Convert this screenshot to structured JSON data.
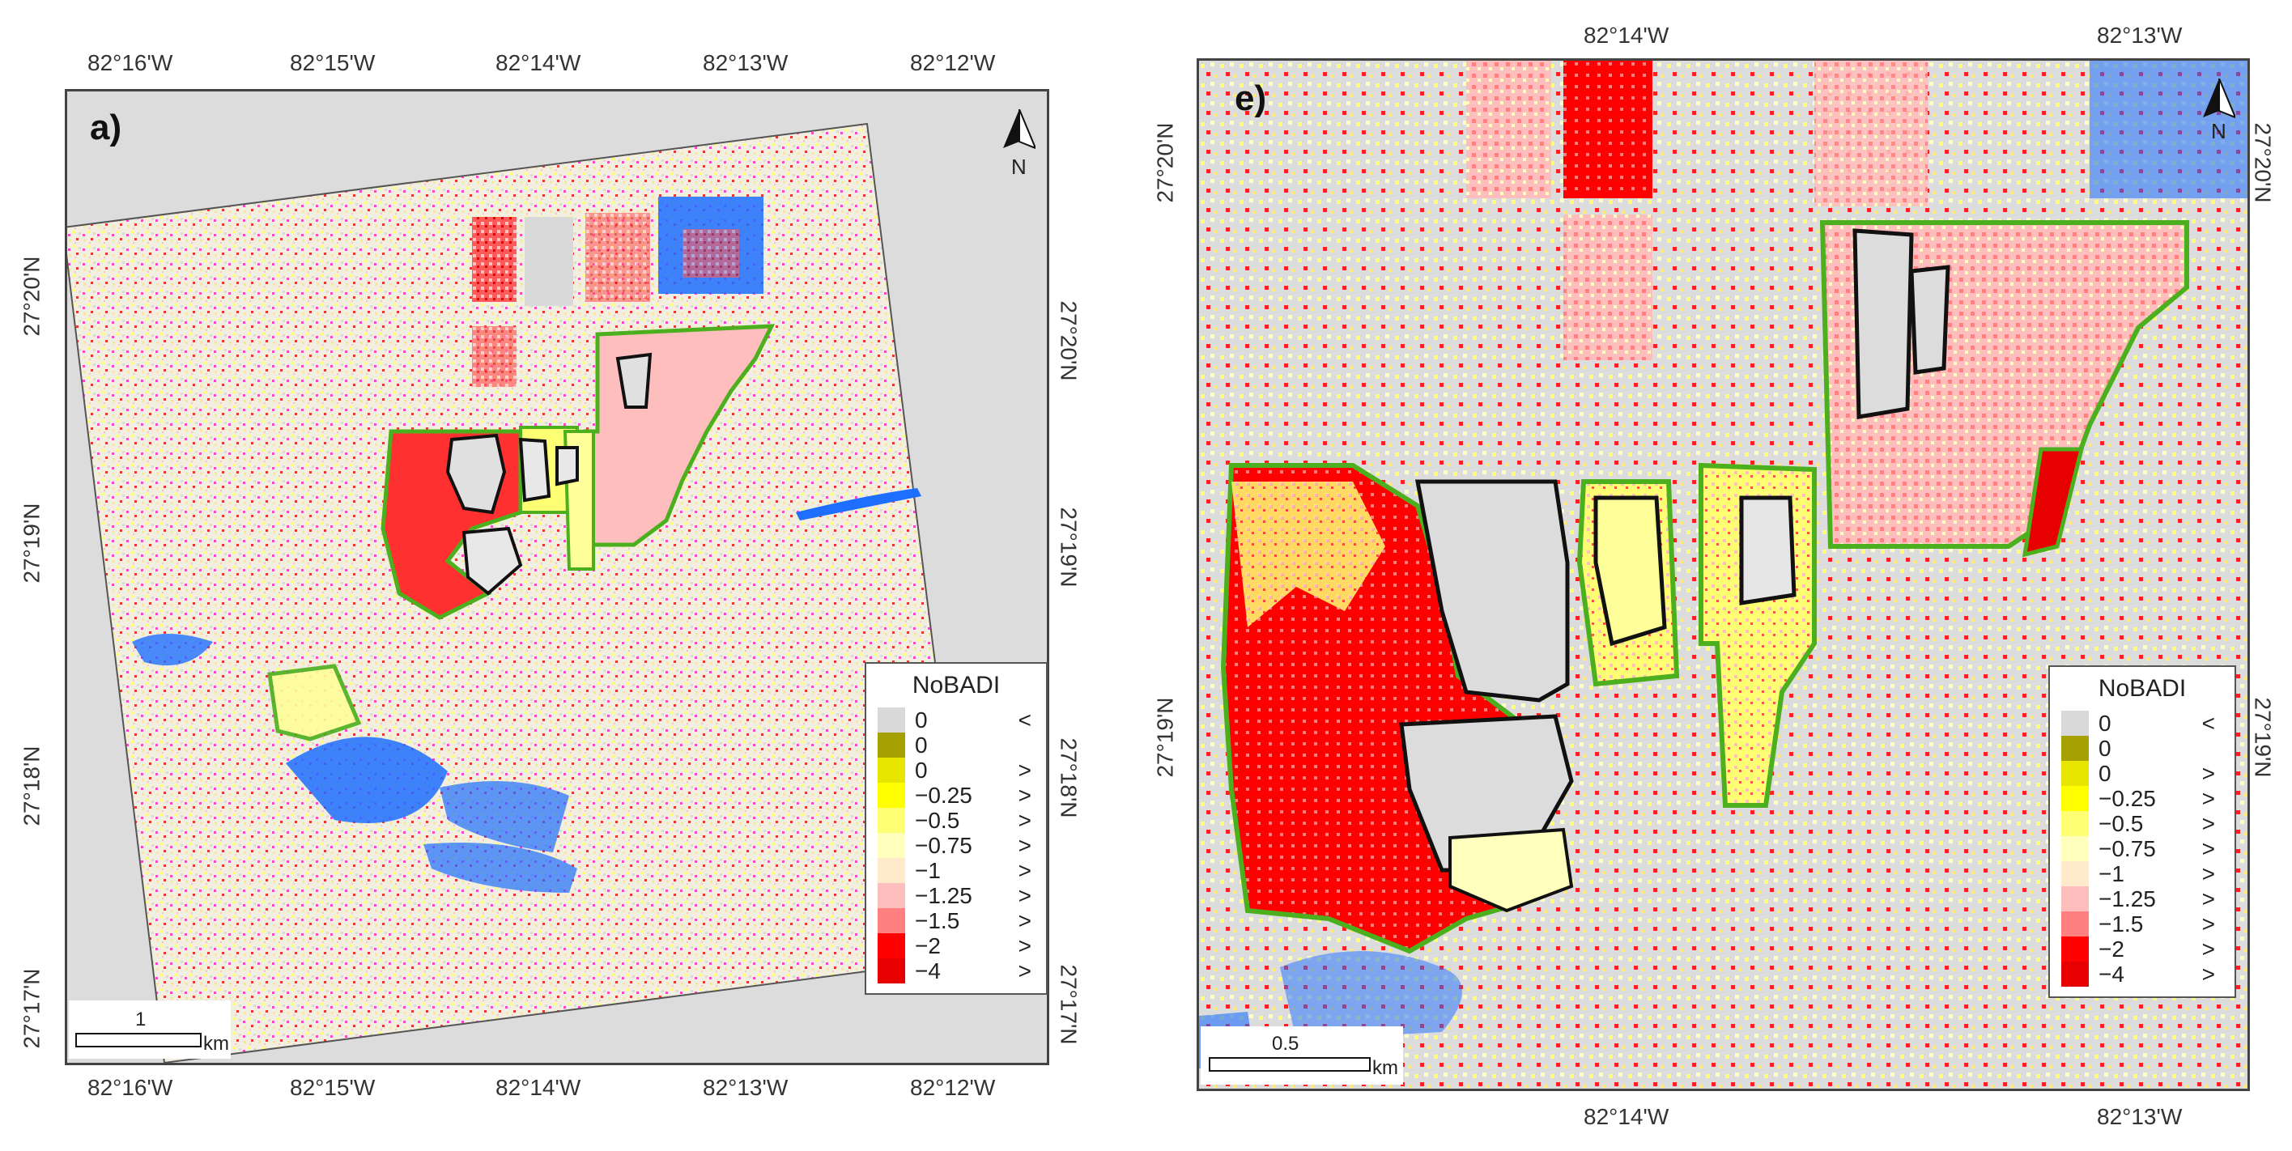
{
  "panel_a": {
    "label": "a)",
    "top_lon_labels": [
      "82°16'W",
      "82°15'W",
      "82°14'W",
      "82°13'W",
      "82°12'W"
    ],
    "bottom_lon_labels": [
      "82°16'W",
      "82°15'W",
      "82°14'W",
      "82°13'W",
      "82°12'W"
    ],
    "left_lat_labels": [
      "27°20'N",
      "27°19'N",
      "27°18'N",
      "27°17'N"
    ],
    "right_lat_labels": [
      "27°20'N",
      "27°19'N",
      "27°18'N",
      "27°17'N"
    ],
    "north_label": "N",
    "scale_value": "1",
    "scale_unit": "km"
  },
  "panel_e": {
    "label": "e)",
    "top_lon_labels": [
      "82°14'W",
      "82°13'W"
    ],
    "bottom_lon_labels": [
      "82°14'W",
      "82°13'W"
    ],
    "left_lat_labels": [
      "27°20'N",
      "27°19'N"
    ],
    "right_lat_labels": [
      "27°20'N",
      "27°19'N"
    ],
    "north_label": "N",
    "scale_value": "0.5",
    "scale_unit": "km"
  },
  "legend": {
    "title": "NoBADI",
    "items": [
      {
        "value": "0",
        "symbol": "<",
        "color": "#d9d9d9"
      },
      {
        "value": "0",
        "symbol": "",
        "color": "#a6a000"
      },
      {
        "value": "0",
        "symbol": ">",
        "color": "#e6e600"
      },
      {
        "value": "−0.25",
        "symbol": ">",
        "color": "#ffff00"
      },
      {
        "value": "−0.5",
        "symbol": ">",
        "color": "#ffff73"
      },
      {
        "value": "−0.75",
        "symbol": ">",
        "color": "#ffffbe"
      },
      {
        "value": "−1",
        "symbol": ">",
        "color": "#ffebcc"
      },
      {
        "value": "−1.25",
        "symbol": ">",
        "color": "#ffbebe"
      },
      {
        "value": "−1.5",
        "symbol": ">",
        "color": "#ff8080"
      },
      {
        "value": "−2",
        "symbol": ">",
        "color": "#ff0000"
      },
      {
        "value": "−4",
        "symbol": ">",
        "color": "#e60000"
      }
    ]
  },
  "colors": {
    "background": "#dcdcdc",
    "water": "#1e6fff",
    "green_outline": "#4caf1e",
    "black_outline": "#111111"
  }
}
